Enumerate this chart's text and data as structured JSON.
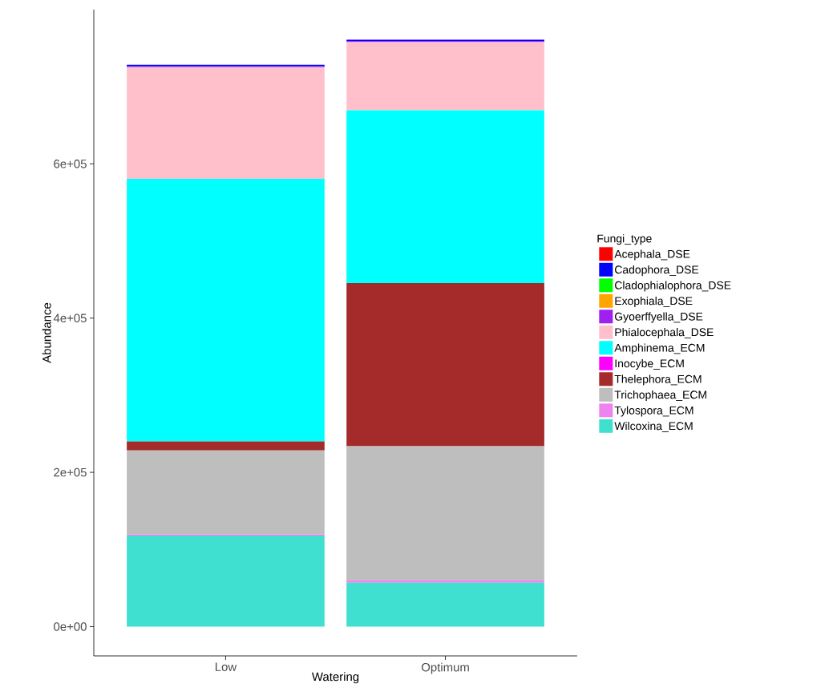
{
  "chart_data": {
    "type": "bar",
    "stacked": true,
    "xlabel": "Watering",
    "ylabel": "Abundance",
    "legend_title": "Fungi_type",
    "legend": "right",
    "categories": [
      "Low",
      "Optimum"
    ],
    "ylim": [
      -38000,
      800000
    ],
    "yticks": [
      {
        "value": 0,
        "label": "0e+00"
      },
      {
        "value": 200000,
        "label": "2e+05"
      },
      {
        "value": 400000,
        "label": "4e+05"
      },
      {
        "value": 600000,
        "label": "6e+05"
      }
    ],
    "series": [
      {
        "name": "Wilcoxina_ECM",
        "color": "#40e0d0",
        "values": [
          118000,
          57000
        ]
      },
      {
        "name": "Tylospora_ECM",
        "color": "#ee82ee",
        "values": [
          1500,
          3000
        ]
      },
      {
        "name": "Trichophaea_ECM",
        "color": "#bebebe",
        "values": [
          109000,
          174000
        ]
      },
      {
        "name": "Thelephora_ECM",
        "color": "#a52a2a",
        "values": [
          11500,
          211500
        ]
      },
      {
        "name": "Inocybe_ECM",
        "color": "#ff00ff",
        "values": [
          0,
          0
        ]
      },
      {
        "name": "Amphinema_ECM",
        "color": "#00ffff",
        "values": [
          340600,
          224000
        ]
      },
      {
        "name": "Phialocephala_DSE",
        "color": "#ffc0cb",
        "values": [
          144800,
          88500
        ]
      },
      {
        "name": "Gyoerffyella_DSE",
        "color": "#a020f0",
        "values": [
          1000,
          1500
        ]
      },
      {
        "name": "Exophiala_DSE",
        "color": "#ffa500",
        "values": [
          0,
          0
        ]
      },
      {
        "name": "Cladophialophora_DSE",
        "color": "#00ff00",
        "values": [
          0,
          0
        ]
      },
      {
        "name": "Cadophora_DSE",
        "color": "#0000ff",
        "values": [
          2000,
          1500
        ]
      },
      {
        "name": "Acephala_DSE",
        "color": "#ff0000",
        "values": [
          0,
          0
        ]
      }
    ]
  }
}
